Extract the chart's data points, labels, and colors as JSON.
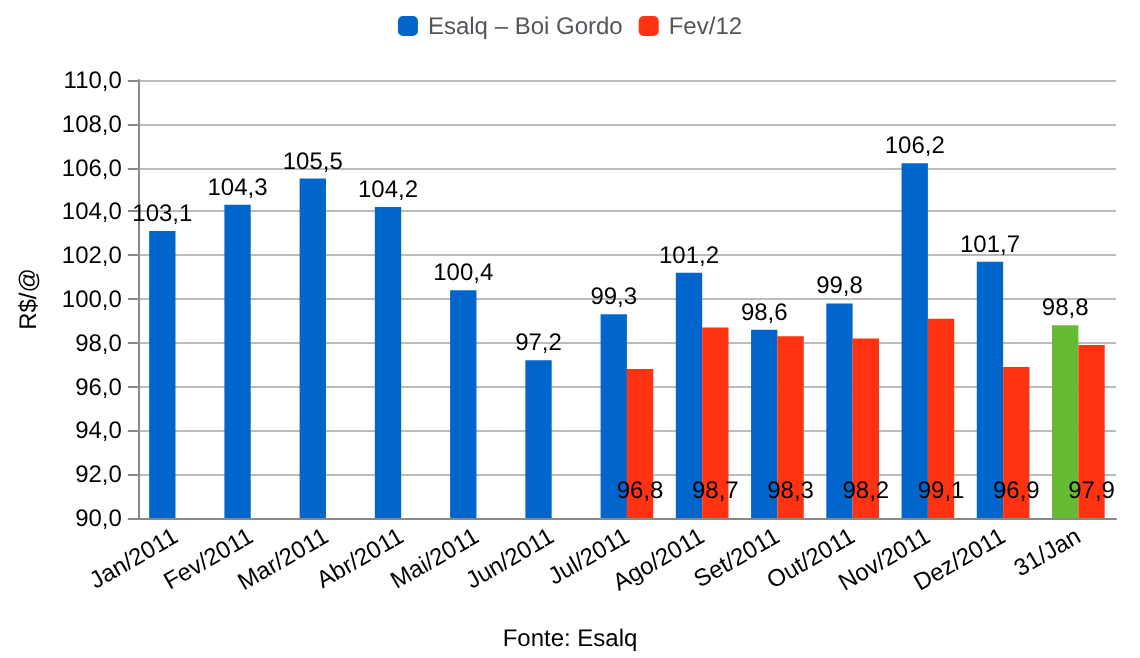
{
  "chart_data": {
    "type": "bar",
    "categories": [
      "Jan/2011",
      "Fev/2011",
      "Mar/2011",
      "Abr/2011",
      "Mai/2011",
      "Jun/2011",
      "Jul/2011",
      "Ago/2011",
      "Set/2011",
      "Out/2011",
      "Nov/2011",
      "Dez/2011",
      "31/Jan"
    ],
    "series": [
      {
        "name": "Esalq – Boi Gordo",
        "color": "#0066cc",
        "colors": [
          "#0066cc",
          "#0066cc",
          "#0066cc",
          "#0066cc",
          "#0066cc",
          "#0066cc",
          "#0066cc",
          "#0066cc",
          "#0066cc",
          "#0066cc",
          "#0066cc",
          "#0066cc",
          "#66bb33"
        ],
        "values": [
          103.1,
          104.3,
          105.5,
          104.2,
          100.4,
          97.2,
          99.3,
          101.2,
          98.6,
          99.8,
          106.2,
          101.7,
          98.8
        ],
        "value_labels": [
          "103,1",
          "104,3",
          "105,5",
          "104,2",
          "100,4",
          "97,2",
          "99,3",
          "101,2",
          "98,6",
          "99,8",
          "106,2",
          "101,7",
          "98,8"
        ]
      },
      {
        "name": "Fev/12",
        "color": "#ff3311",
        "values": [
          null,
          null,
          null,
          null,
          null,
          null,
          96.8,
          98.7,
          98.3,
          98.2,
          99.1,
          96.9,
          97.9
        ],
        "value_labels": [
          null,
          null,
          null,
          null,
          null,
          null,
          "96,8",
          "98,7",
          "98,3",
          "98,2",
          "99,1",
          "96,9",
          "97,9"
        ]
      }
    ],
    "ylabel": "R$/@",
    "ylim": [
      90,
      110
    ],
    "yticks": [
      {
        "value": 90,
        "label": "90,0"
      },
      {
        "value": 92,
        "label": "92,0"
      },
      {
        "value": 94,
        "label": "94,0"
      },
      {
        "value": 96,
        "label": "96,0"
      },
      {
        "value": 98,
        "label": "98,0"
      },
      {
        "value": 100,
        "label": "100,0"
      },
      {
        "value": 102,
        "label": "102,0"
      },
      {
        "value": 104,
        "label": "104,0"
      },
      {
        "value": 106,
        "label": "106,0"
      },
      {
        "value": 108,
        "label": "108,0"
      },
      {
        "value": 110,
        "label": "110,0"
      }
    ],
    "grid": "y",
    "legend": "top",
    "annotations": [
      "Fonte: Esalq"
    ]
  }
}
